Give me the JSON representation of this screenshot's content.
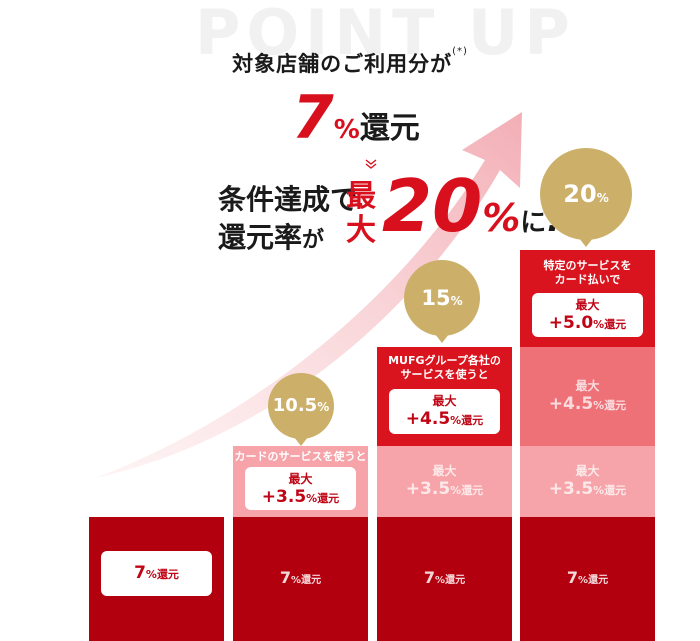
{
  "background_title": "POINT UP",
  "subtitle": "対象店舗のご利用分が",
  "subtitle_note": "(*)",
  "headline": {
    "number": "7",
    "pct": "%",
    "suffix": "還元"
  },
  "line3": {
    "a": "条件達成で",
    "b_main": "還元率",
    "b_particle": "が"
  },
  "max_word": "最大",
  "max_value": {
    "number": "20",
    "pct": "%",
    "tail": "に",
    "excl": "!"
  },
  "colors": {
    "red": "#d8101d",
    "dark_red": "#b3000f",
    "gold": "#ccb06a"
  },
  "columns": [
    {
      "base": {
        "num": "7",
        "pct": "%",
        "unit": "還元"
      }
    },
    {
      "base": {
        "num": "7",
        "pct": "%",
        "unit": "還元"
      },
      "bubble": {
        "num": "10.5",
        "pct": "%"
      },
      "top": {
        "label": "カードのサービスを使うと",
        "max": "最大",
        "plus": "+3.5",
        "pct": "%",
        "unit": "還元"
      }
    },
    {
      "base": {
        "num": "7",
        "pct": "%",
        "unit": "還元"
      },
      "bubble": {
        "num": "15",
        "pct": "%"
      },
      "ghost1": {
        "max": "最大",
        "plus": "+3.5",
        "pct": "%",
        "unit": "還元"
      },
      "top": {
        "label1": "MUFGグループ各社の",
        "label2": "サービスを使うと",
        "max": "最大",
        "plus": "+4.5",
        "pct": "%",
        "unit": "還元"
      }
    },
    {
      "base": {
        "num": "7",
        "pct": "%",
        "unit": "還元"
      },
      "bubble": {
        "num": "20",
        "pct": "%"
      },
      "ghost1": {
        "max": "最大",
        "plus": "+3.5",
        "pct": "%",
        "unit": "還元"
      },
      "ghost2": {
        "max": "最大",
        "plus": "+4.5",
        "pct": "%",
        "unit": "還元"
      },
      "top": {
        "label1": "特定のサービスを",
        "label2": "カード払いで",
        "max": "最大",
        "plus": "+5.0",
        "pct": "%",
        "unit": "還元"
      }
    }
  ]
}
